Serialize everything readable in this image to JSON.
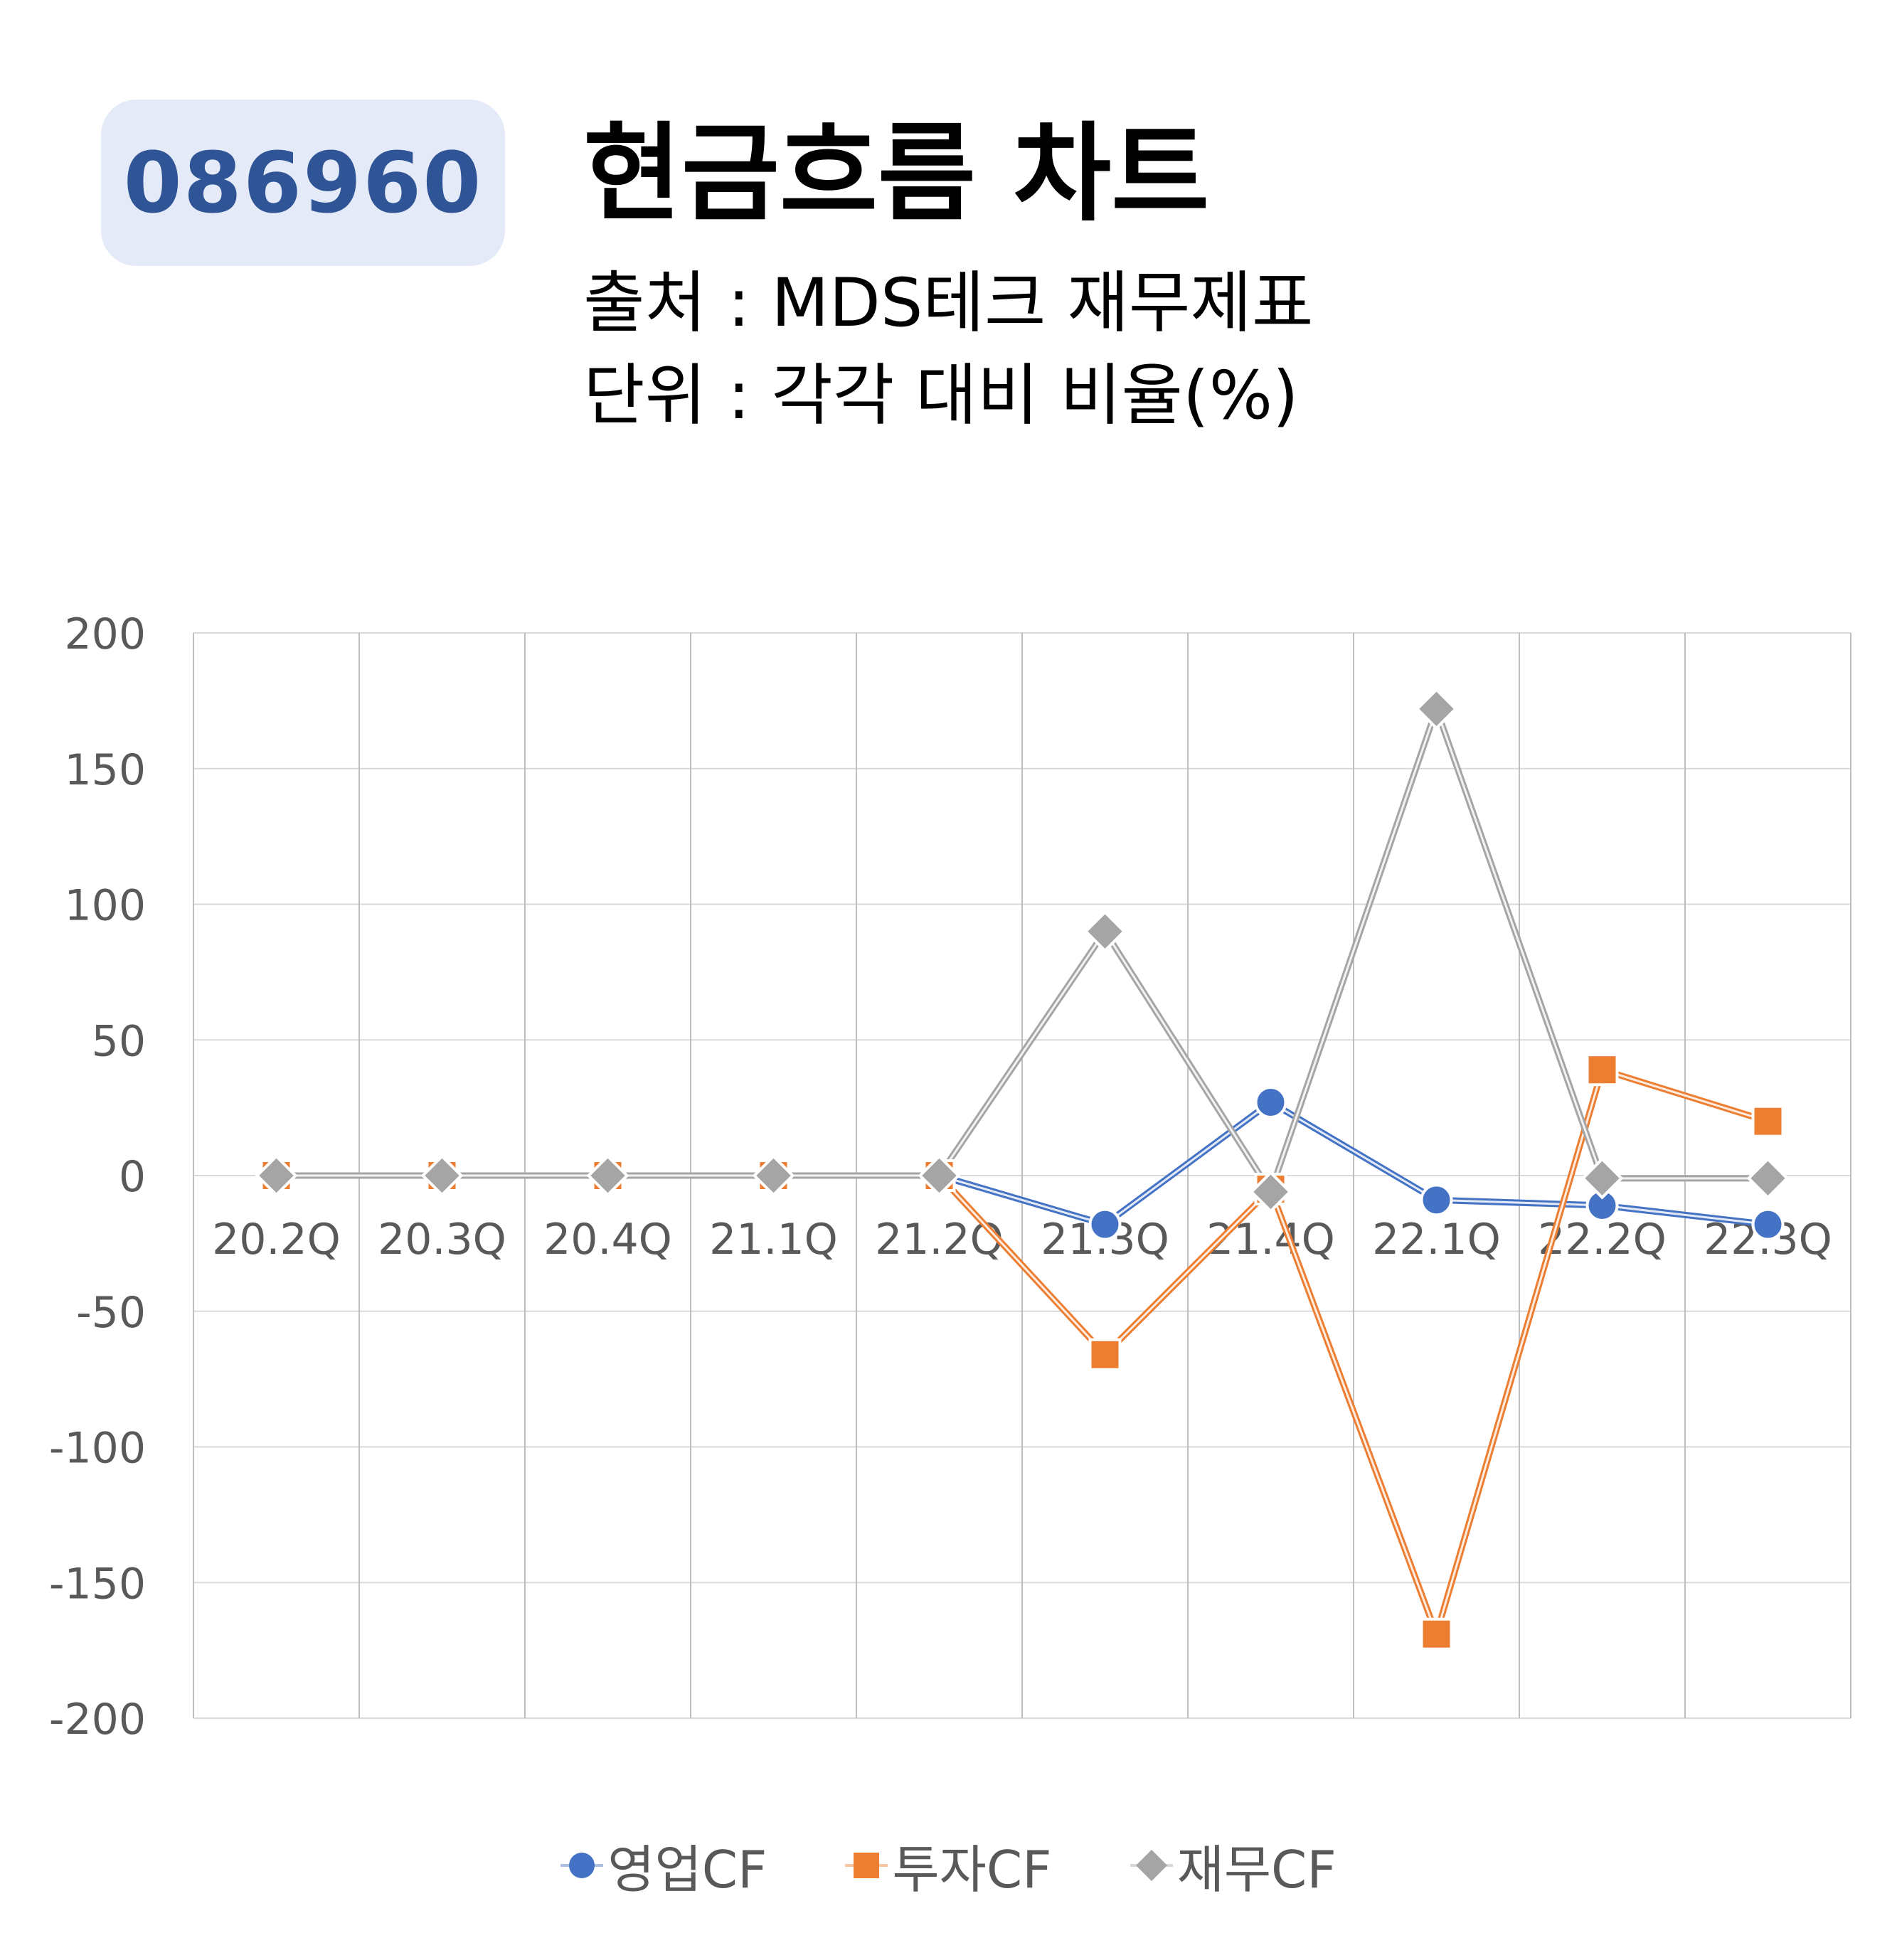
{
  "header": {
    "code": "086960",
    "title": "현금흐름 차트",
    "source": "출처 : MDS테크 재무제표",
    "unit": "단위 : 각각 대비 비율(%)"
  },
  "chart_data": {
    "type": "line",
    "title": "현금흐름 차트",
    "categories": [
      "20.2Q",
      "20.3Q",
      "20.4Q",
      "21.1Q",
      "21.2Q",
      "21.3Q",
      "21.4Q",
      "22.1Q",
      "22.2Q",
      "22.3Q"
    ],
    "ylim": [
      -200,
      200
    ],
    "yticks": [
      200,
      150,
      100,
      50,
      0,
      -50,
      -100,
      -150,
      -200
    ],
    "grid": true,
    "legend_position": "bottom",
    "series": [
      {
        "name": "영업CF",
        "color": "#4472c4",
        "marker": "circle",
        "values": [
          0,
          0,
          0,
          0,
          0,
          -18,
          27,
          -9,
          -11,
          -18
        ]
      },
      {
        "name": "투자CF",
        "color": "#ed7d31",
        "marker": "square",
        "values": [
          0,
          0,
          0,
          0,
          0,
          -66,
          -5,
          -169,
          39,
          20
        ]
      },
      {
        "name": "재무CF",
        "color": "#a5a5a5",
        "marker": "diamond",
        "values": [
          0,
          0,
          0,
          0,
          0,
          90,
          -6,
          172,
          -1,
          -1
        ]
      }
    ]
  }
}
